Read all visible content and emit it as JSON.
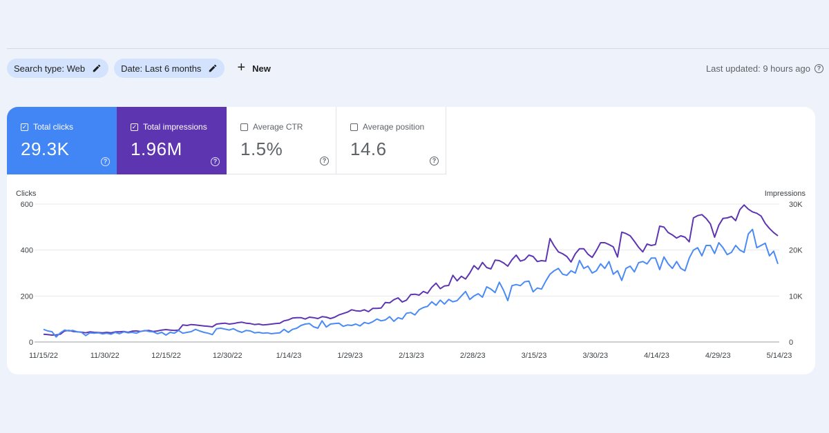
{
  "filters": {
    "search_type": "Search type: Web",
    "date": "Date: Last 6 months",
    "new_label": "New"
  },
  "updated": "Last updated: 9 hours ago",
  "metrics": [
    {
      "label": "Total clicks",
      "value": "29.3K",
      "checked": true,
      "color": "#4285f4"
    },
    {
      "label": "Total impressions",
      "value": "1.96M",
      "checked": true,
      "color": "#5e35b1"
    },
    {
      "label": "Average CTR",
      "value": "1.5%",
      "checked": false
    },
    {
      "label": "Average position",
      "value": "14.6",
      "checked": false
    }
  ],
  "chart_data": {
    "type": "line",
    "left_axis_label": "Clicks",
    "right_axis_label": "Impressions",
    "y_left_ticks": [
      "0",
      "200",
      "400",
      "600"
    ],
    "y_right_ticks": [
      "0",
      "10K",
      "20K",
      "30K"
    ],
    "ylim_left": [
      0,
      600
    ],
    "ylim_right": [
      0,
      30000
    ],
    "x_ticks": [
      "11/15/22",
      "11/30/22",
      "12/15/22",
      "12/30/22",
      "1/14/23",
      "1/29/23",
      "2/13/23",
      "2/28/23",
      "3/15/23",
      "3/30/23",
      "4/14/23",
      "4/29/23",
      "5/14/23"
    ],
    "grid": true,
    "series": [
      {
        "name": "Clicks",
        "axis": "left",
        "color": "#4a8af4",
        "values": [
          55,
          48,
          45,
          22,
          40,
          52,
          48,
          50,
          44,
          42,
          28,
          40,
          38,
          40,
          35,
          38,
          34,
          42,
          36,
          44,
          40,
          42,
          38,
          46,
          50,
          46,
          44,
          36,
          42,
          30,
          42,
          38,
          50,
          38,
          42,
          45,
          55,
          48,
          42,
          38,
          32,
          58,
          60,
          56,
          52,
          58,
          48,
          42,
          50,
          48,
          40,
          42,
          38,
          40,
          36,
          38,
          40,
          55,
          42,
          55,
          60,
          72,
          78,
          80,
          66,
          60,
          92,
          65,
          78,
          80,
          82,
          68,
          74,
          72,
          78,
          70,
          85,
          80,
          88,
          100,
          92,
          96,
          110,
          90,
          106,
          100,
          125,
          128,
          118,
          140,
          150,
          155,
          175,
          160,
          182,
          165,
          185,
          175,
          180,
          200,
          220,
          185,
          200,
          210,
          195,
          240,
          230,
          215,
          260,
          225,
          180,
          245,
          250,
          245,
          262,
          265,
          218,
          235,
          230,
          265,
          295,
          310,
          320,
          295,
          290,
          310,
          300,
          355,
          320,
          330,
          300,
          310,
          340,
          320,
          350,
          295,
          310,
          268,
          320,
          330,
          305,
          345,
          350,
          340,
          365,
          365,
          315,
          370,
          340,
          320,
          350,
          320,
          310,
          365,
          400,
          410,
          375,
          420,
          420,
          385,
          432,
          410,
          380,
          390,
          420,
          400,
          390,
          470,
          490,
          410,
          420,
          430,
          375,
          395,
          340
        ],
        "values_note": ""
      },
      {
        "name": "Impressions",
        "axis": "right",
        "color": "#5e35b1",
        "values": [
          1700,
          1600,
          1500,
          1550,
          1700,
          2400,
          2500,
          2300,
          2200,
          2150,
          2000,
          2200,
          2100,
          2050,
          2000,
          2100,
          2000,
          2200,
          2200,
          2300,
          2100,
          2350,
          2400,
          2300,
          2450,
          2500,
          2300,
          2400,
          2600,
          2700,
          2600,
          2500,
          2600,
          3700,
          3600,
          3800,
          3700,
          3600,
          3500,
          3400,
          3300,
          3900,
          4000,
          4100,
          3900,
          4000,
          4200,
          4300,
          4100,
          4000,
          3800,
          3900,
          3700,
          3800,
          3900,
          4000,
          4100,
          4600,
          4800,
          5200,
          5300,
          5300,
          5000,
          5400,
          5300,
          5100,
          5500,
          5400,
          5100,
          5400,
          5900,
          6200,
          6500,
          7000,
          6800,
          6700,
          7000,
          6600,
          7300,
          7300,
          7400,
          8600,
          8500,
          9200,
          9600,
          8700,
          9100,
          10300,
          10400,
          10200,
          11000,
          10600,
          11900,
          12800,
          11600,
          12200,
          12300,
          14500,
          13300,
          14300,
          13700,
          15000,
          16600,
          15800,
          17300,
          16200,
          15900,
          17800,
          17700,
          17200,
          16500,
          17900,
          18900,
          17600,
          17900,
          18900,
          18600,
          17500,
          17700,
          17600,
          22500,
          20900,
          19600,
          19200,
          18600,
          17400,
          19200,
          20300,
          20300,
          19100,
          18400,
          19900,
          21600,
          21600,
          21200,
          20700,
          18500,
          23900,
          23600,
          23100,
          21900,
          20600,
          19600,
          21300,
          21000,
          21200,
          25200,
          25000,
          23800,
          23300,
          22600,
          23100,
          22800,
          21800,
          27000,
          27500,
          27700,
          26900,
          25700,
          22800,
          25400,
          26900,
          27000,
          27300,
          26400,
          28800,
          29800,
          28900,
          28300,
          28000,
          27400,
          25800,
          24700,
          23800,
          23100
        ]
      }
    ]
  }
}
